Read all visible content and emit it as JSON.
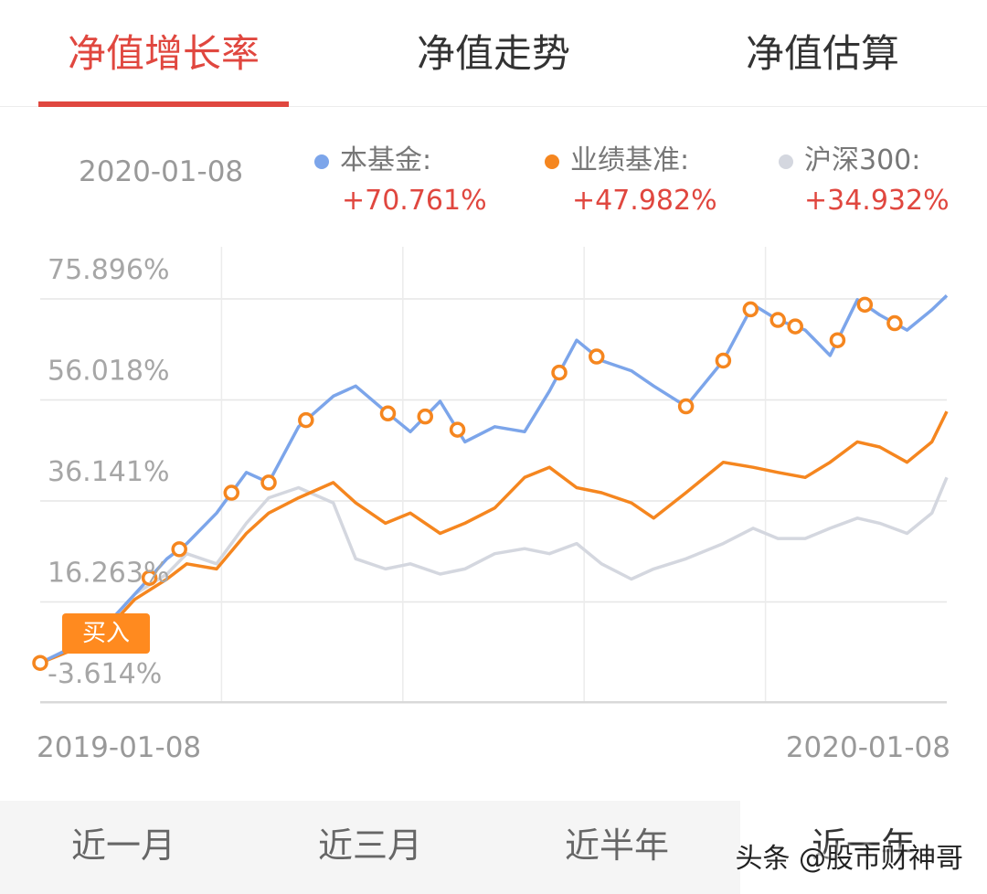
{
  "tabs": [
    "净值增长率",
    "净值走势",
    "净值估算"
  ],
  "legend": {
    "date": "2020-01-08",
    "items": [
      {
        "label": "本基金:",
        "value": "+70.761%",
        "color": "#7ca5ea"
      },
      {
        "label": "业绩基准:",
        "value": "+47.982%",
        "color": "#f5861f"
      },
      {
        "label": "沪深300:",
        "value": "+34.932%",
        "color": "#d4d7df"
      }
    ]
  },
  "buy_label": "买入",
  "periods": [
    "近一月",
    "近三月",
    "近半年",
    "近一年"
  ],
  "watermark": "头条 @股市财神哥",
  "chart_data": {
    "type": "line",
    "x_range": [
      "2019-01-08",
      "2020-01-08"
    ],
    "x_tick_labels": [
      "2019-01-08",
      "2020-01-08"
    ],
    "y_tick_labels": [
      "75.896%",
      "56.018%",
      "36.141%",
      "16.263%",
      "-3.614%"
    ],
    "ylim": [
      -3.614,
      75.896
    ],
    "x": [
      "2019-01-08",
      "2019-01-31",
      "2019-02-15",
      "2019-02-28",
      "2019-03-08",
      "2019-03-20",
      "2019-04-01",
      "2019-04-10",
      "2019-04-22",
      "2019-05-06",
      "2019-05-15",
      "2019-05-27",
      "2019-06-06",
      "2019-06-18",
      "2019-06-28",
      "2019-07-10",
      "2019-07-22",
      "2019-08-01",
      "2019-08-12",
      "2019-08-22",
      "2019-09-03",
      "2019-09-12",
      "2019-09-25",
      "2019-10-10",
      "2019-10-22",
      "2019-11-01",
      "2019-11-12",
      "2019-11-22",
      "2019-12-03",
      "2019-12-12",
      "2019-12-23",
      "2020-01-02",
      "2020-01-08"
    ],
    "series": [
      {
        "name": "本基金",
        "color": "#7ca5ea",
        "values": [
          -1.5,
          4,
          12,
          19,
          22,
          28,
          36,
          34,
          45,
          51,
          53,
          48,
          44,
          50,
          42,
          45,
          44,
          52,
          62,
          58,
          56,
          53,
          49,
          58,
          69,
          66,
          64,
          59,
          70,
          67,
          64,
          68,
          70.8
        ]
      },
      {
        "name": "业绩基准",
        "color": "#f5861f",
        "values": [
          -1.5,
          3,
          11,
          15,
          18,
          17,
          24,
          28,
          31,
          34,
          30,
          26,
          28,
          24,
          26,
          29,
          35,
          37,
          33,
          32,
          30,
          27,
          32,
          38,
          37,
          36,
          35,
          38,
          42,
          41,
          38,
          42,
          48
        ]
      },
      {
        "name": "沪深300",
        "color": "#d4d7df",
        "values": [
          -1.5,
          4,
          12,
          16,
          20,
          18,
          26,
          31,
          33,
          30,
          19,
          17,
          18,
          16,
          17,
          20,
          21,
          20,
          22,
          18,
          15,
          17,
          19,
          22,
          25,
          23,
          23,
          25,
          27,
          26,
          24,
          28,
          35
        ]
      }
    ],
    "markers": [
      {
        "series": "本基金",
        "dates": [
          "2019-01-08",
          "2019-02-21",
          "2019-03-05",
          "2019-03-26",
          "2019-04-10",
          "2019-04-25",
          "2019-05-28",
          "2019-06-12",
          "2019-06-25",
          "2019-08-05",
          "2019-08-20",
          "2019-09-25",
          "2019-10-10",
          "2019-10-21",
          "2019-11-01",
          "2019-11-08",
          "2019-11-25",
          "2019-12-06",
          "2019-12-18"
        ]
      }
    ],
    "grid": true,
    "legend_position": "top"
  }
}
